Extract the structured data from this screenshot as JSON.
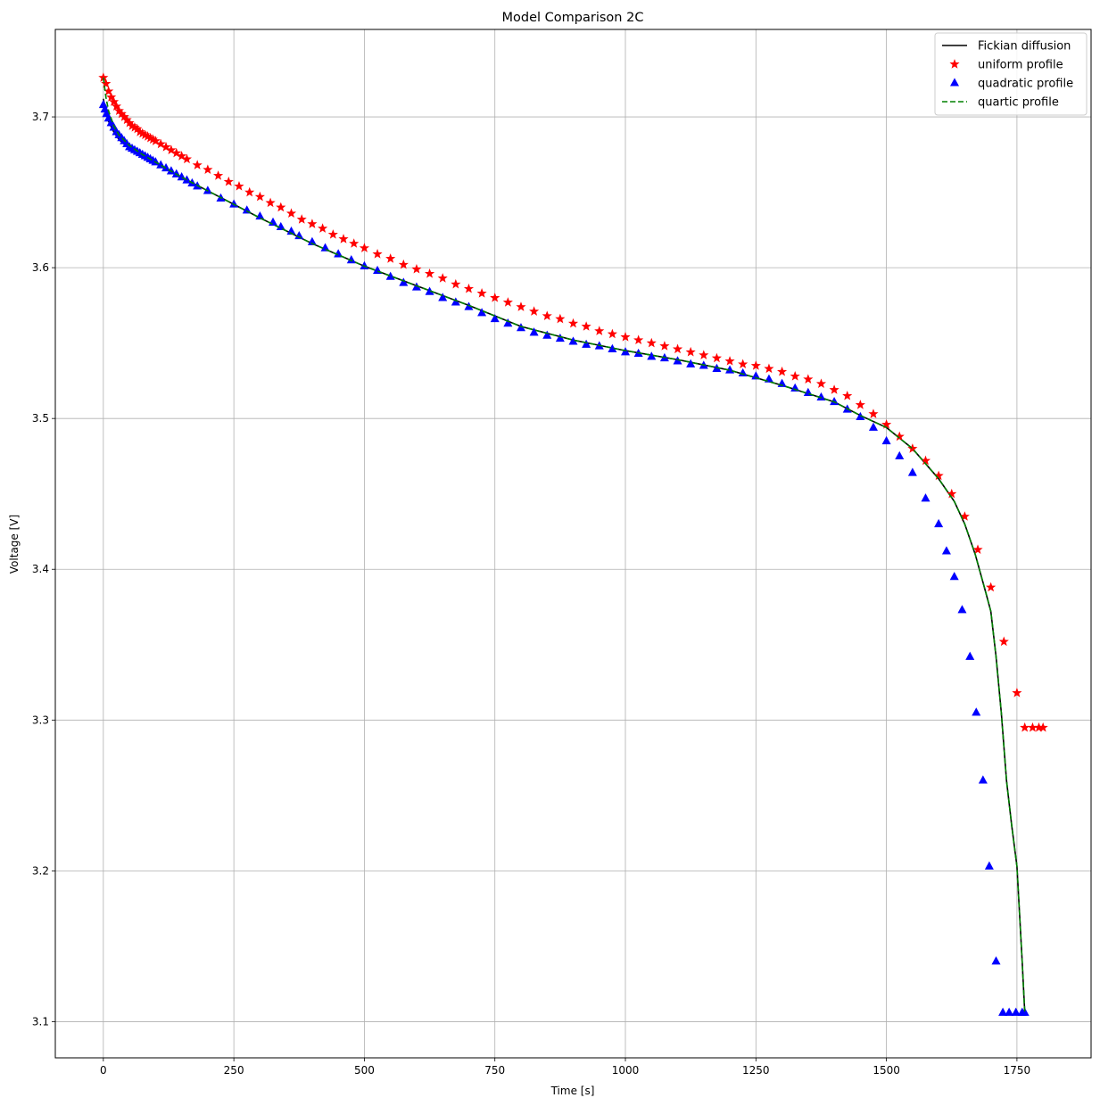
{
  "chart_data": {
    "type": "line",
    "title": "Model Comparison 2C",
    "xlabel": "Time [s]",
    "ylabel": "Voltage [V]",
    "xlim": [
      -92,
      1892
    ],
    "ylim": [
      3.076,
      3.758
    ],
    "xticks": [
      0,
      250,
      500,
      750,
      1000,
      1250,
      1500,
      1750
    ],
    "yticks": [
      3.1,
      3.2,
      3.3,
      3.4,
      3.5,
      3.6,
      3.7
    ],
    "grid": true,
    "legend_position": "top-right",
    "series": [
      {
        "name": "Fickian diffusion",
        "style": "solid-line",
        "color": "#000000",
        "x": [
          0,
          5,
          10,
          20,
          30,
          50,
          75,
          100,
          150,
          200,
          250,
          300,
          400,
          500,
          600,
          700,
          800,
          900,
          1000,
          1100,
          1200,
          1300,
          1400,
          1450,
          1500,
          1550,
          1600,
          1630,
          1650,
          1670,
          1690,
          1700,
          1710,
          1720,
          1730,
          1740,
          1750,
          1760,
          1765
        ],
        "y": [
          3.712,
          3.703,
          3.697,
          3.69,
          3.685,
          3.679,
          3.674,
          3.669,
          3.66,
          3.651,
          3.642,
          3.633,
          3.616,
          3.601,
          3.588,
          3.575,
          3.561,
          3.552,
          3.545,
          3.539,
          3.532,
          3.522,
          3.511,
          3.502,
          3.494,
          3.48,
          3.46,
          3.445,
          3.43,
          3.41,
          3.385,
          3.372,
          3.342,
          3.305,
          3.26,
          3.23,
          3.203,
          3.14,
          3.106
        ]
      },
      {
        "name": "uniform profile",
        "style": "star-markers",
        "color": "#ff0000",
        "x": [
          0,
          5,
          10,
          15,
          20,
          25,
          30,
          35,
          40,
          45,
          50,
          55,
          60,
          65,
          70,
          75,
          80,
          85,
          90,
          95,
          100,
          110,
          120,
          130,
          140,
          150,
          160,
          180,
          200,
          220,
          240,
          260,
          280,
          300,
          320,
          340,
          360,
          380,
          400,
          420,
          440,
          460,
          480,
          500,
          525,
          550,
          575,
          600,
          625,
          650,
          675,
          700,
          725,
          750,
          775,
          800,
          825,
          850,
          875,
          900,
          925,
          950,
          975,
          1000,
          1025,
          1050,
          1075,
          1100,
          1125,
          1150,
          1175,
          1200,
          1225,
          1250,
          1275,
          1300,
          1325,
          1350,
          1375,
          1400,
          1425,
          1450,
          1475,
          1500,
          1525,
          1550,
          1575,
          1600,
          1625,
          1650,
          1675,
          1700,
          1725,
          1750,
          1765,
          1780,
          1792,
          1800
        ],
        "y": [
          3.726,
          3.722,
          3.717,
          3.713,
          3.71,
          3.707,
          3.704,
          3.702,
          3.7,
          3.698,
          3.696,
          3.694,
          3.693,
          3.692,
          3.69,
          3.689,
          3.688,
          3.687,
          3.686,
          3.685,
          3.684,
          3.682,
          3.68,
          3.678,
          3.676,
          3.674,
          3.672,
          3.668,
          3.665,
          3.661,
          3.657,
          3.654,
          3.65,
          3.647,
          3.643,
          3.64,
          3.636,
          3.632,
          3.629,
          3.626,
          3.622,
          3.619,
          3.616,
          3.613,
          3.609,
          3.606,
          3.602,
          3.599,
          3.596,
          3.593,
          3.589,
          3.586,
          3.583,
          3.58,
          3.577,
          3.574,
          3.571,
          3.568,
          3.566,
          3.563,
          3.561,
          3.558,
          3.556,
          3.554,
          3.552,
          3.55,
          3.548,
          3.546,
          3.544,
          3.542,
          3.54,
          3.538,
          3.536,
          3.535,
          3.533,
          3.531,
          3.528,
          3.526,
          3.523,
          3.519,
          3.515,
          3.509,
          3.503,
          3.496,
          3.488,
          3.48,
          3.472,
          3.462,
          3.45,
          3.435,
          3.413,
          3.388,
          3.352,
          3.318,
          3.295,
          3.295,
          3.295,
          3.295
        ]
      },
      {
        "name": "quadratic profile",
        "style": "triangle-markers",
        "color": "#0000ff",
        "x": [
          0,
          3,
          6,
          10,
          15,
          20,
          25,
          30,
          35,
          40,
          45,
          50,
          55,
          60,
          65,
          70,
          75,
          80,
          85,
          90,
          95,
          100,
          110,
          120,
          130,
          140,
          150,
          160,
          170,
          180,
          200,
          225,
          250,
          275,
          300,
          325,
          340,
          360,
          375,
          400,
          425,
          450,
          475,
          500,
          525,
          550,
          575,
          600,
          625,
          650,
          675,
          700,
          725,
          750,
          775,
          800,
          825,
          850,
          875,
          900,
          925,
          950,
          975,
          1000,
          1025,
          1050,
          1075,
          1100,
          1125,
          1150,
          1175,
          1200,
          1225,
          1250,
          1275,
          1300,
          1325,
          1350,
          1375,
          1400,
          1425,
          1450,
          1475,
          1500,
          1525,
          1550,
          1575,
          1600,
          1615,
          1630,
          1645,
          1660,
          1672,
          1685,
          1697,
          1710,
          1723,
          1735,
          1748,
          1760,
          1765
        ],
        "y": [
          3.708,
          3.705,
          3.702,
          3.699,
          3.696,
          3.693,
          3.69,
          3.688,
          3.686,
          3.684,
          3.682,
          3.68,
          3.679,
          3.678,
          3.677,
          3.676,
          3.675,
          3.674,
          3.673,
          3.672,
          3.671,
          3.67,
          3.668,
          3.666,
          3.664,
          3.662,
          3.66,
          3.658,
          3.656,
          3.654,
          3.651,
          3.646,
          3.642,
          3.638,
          3.634,
          3.63,
          3.627,
          3.624,
          3.621,
          3.617,
          3.613,
          3.609,
          3.605,
          3.601,
          3.598,
          3.594,
          3.59,
          3.587,
          3.584,
          3.58,
          3.577,
          3.574,
          3.57,
          3.566,
          3.563,
          3.56,
          3.557,
          3.555,
          3.553,
          3.551,
          3.549,
          3.548,
          3.546,
          3.544,
          3.543,
          3.541,
          3.54,
          3.538,
          3.536,
          3.535,
          3.533,
          3.532,
          3.53,
          3.528,
          3.526,
          3.523,
          3.52,
          3.517,
          3.514,
          3.511,
          3.506,
          3.501,
          3.494,
          3.485,
          3.475,
          3.464,
          3.447,
          3.43,
          3.412,
          3.395,
          3.373,
          3.342,
          3.305,
          3.26,
          3.203,
          3.14,
          3.106,
          3.106,
          3.106,
          3.106,
          3.106
        ]
      },
      {
        "name": "quartic profile",
        "style": "dashed-line",
        "color": "#008000",
        "x": [
          0,
          5,
          10,
          20,
          30,
          50,
          75,
          100,
          150,
          200,
          250,
          300,
          400,
          500,
          600,
          700,
          800,
          900,
          1000,
          1100,
          1200,
          1300,
          1400,
          1450,
          1500,
          1550,
          1600,
          1630,
          1650,
          1670,
          1690,
          1700,
          1710,
          1720,
          1730,
          1740,
          1750,
          1760,
          1765
        ],
        "y": [
          3.726,
          3.713,
          3.704,
          3.694,
          3.688,
          3.681,
          3.675,
          3.67,
          3.66,
          3.651,
          3.642,
          3.633,
          3.616,
          3.601,
          3.588,
          3.575,
          3.561,
          3.552,
          3.545,
          3.539,
          3.532,
          3.522,
          3.511,
          3.502,
          3.494,
          3.48,
          3.46,
          3.445,
          3.43,
          3.41,
          3.385,
          3.372,
          3.342,
          3.305,
          3.26,
          3.23,
          3.203,
          3.14,
          3.106
        ]
      }
    ]
  }
}
